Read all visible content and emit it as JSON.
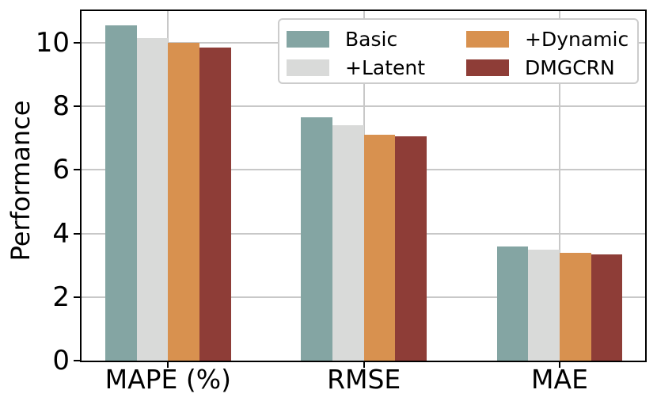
{
  "figure": {
    "background": "#ffffff",
    "axis_color": "#000000",
    "grid_color": "#c8c8c8",
    "legend_border_color": "#cccccc"
  },
  "chart_data": {
    "type": "bar",
    "title": "",
    "xlabel": "",
    "ylabel": "Performance",
    "categories": [
      "MAPE (%)",
      "RMSE",
      "MAE"
    ],
    "series": [
      {
        "name": "Basic",
        "color": "#84a5a3",
        "values": [
          10.55,
          7.65,
          3.6
        ]
      },
      {
        "name": "+Latent",
        "color": "#d9dad9",
        "values": [
          10.15,
          7.4,
          3.5
        ]
      },
      {
        "name": "+Dynamic",
        "color": "#d8914f",
        "values": [
          10.0,
          7.1,
          3.4
        ]
      },
      {
        "name": "DMGCRN",
        "color": "#8e3d37",
        "values": [
          9.85,
          7.05,
          3.35
        ]
      }
    ],
    "ylim": [
      0,
      11
    ],
    "yticks": [
      0,
      2,
      4,
      6,
      8,
      10
    ],
    "grid": true,
    "legend": {
      "position": "upper-right",
      "columns": 2
    }
  }
}
